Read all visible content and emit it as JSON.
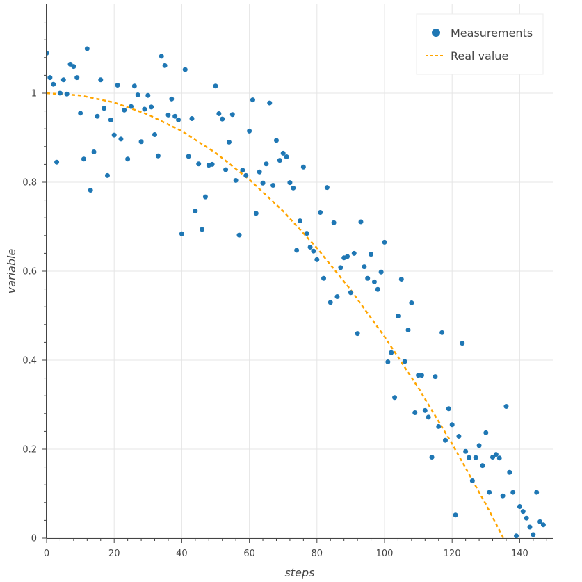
{
  "chart_data": {
    "type": "scatter",
    "title": "",
    "xlabel": "steps",
    "ylabel": "variable",
    "xlim": [
      0,
      150
    ],
    "ylim": [
      0,
      1.2
    ],
    "x_ticks": [
      0,
      20,
      40,
      60,
      80,
      100,
      120,
      140
    ],
    "y_ticks": [
      0,
      0.2,
      0.4,
      0.6,
      0.8,
      1
    ],
    "x_tick_labels": [
      "0",
      "20",
      "40",
      "60",
      "80",
      "100",
      "120",
      "140"
    ],
    "y_tick_labels": [
      "0",
      "0.2",
      "0.4",
      "0.6",
      "0.8",
      "1"
    ],
    "grid": true,
    "legend_position": "top-right",
    "colors": {
      "measurements": "#1f77b4",
      "real_value": "#ffa500",
      "grid": "#e5e5e5",
      "axis": "#444444"
    },
    "series": [
      {
        "name": "Measurements",
        "kind": "scatter",
        "x": [
          0,
          1,
          2,
          3,
          4,
          5,
          6,
          7,
          8,
          9,
          10,
          11,
          12,
          13,
          14,
          15,
          16,
          17,
          18,
          19,
          20,
          21,
          22,
          23,
          24,
          25,
          26,
          27,
          28,
          29,
          30,
          31,
          32,
          33,
          34,
          35,
          36,
          37,
          38,
          39,
          40,
          41,
          42,
          43,
          44,
          45,
          46,
          47,
          48,
          49,
          50,
          51,
          52,
          53,
          54,
          55,
          56,
          57,
          58,
          59,
          60,
          61,
          62,
          63,
          64,
          65,
          66,
          67,
          68,
          69,
          70,
          71,
          72,
          73,
          74,
          75,
          76,
          77,
          78,
          79,
          80,
          81,
          82,
          83,
          84,
          85,
          86,
          87,
          88,
          89,
          90,
          91,
          92,
          93,
          94,
          95,
          96,
          97,
          98,
          99,
          100,
          101,
          102,
          103,
          104,
          105,
          106,
          107,
          108,
          109,
          110,
          111,
          112,
          113,
          114,
          115,
          116,
          117,
          118,
          119,
          120,
          121,
          122,
          123,
          124,
          125,
          126,
          127,
          128,
          129,
          130,
          131,
          132,
          133,
          134,
          135,
          136,
          137,
          138,
          139,
          140,
          141,
          142,
          143,
          144,
          145,
          146,
          147
        ],
        "y": [
          1.09,
          1.035,
          1.02,
          0.845,
          1.0,
          1.03,
          0.998,
          1.065,
          1.06,
          1.035,
          0.955,
          0.852,
          1.1,
          0.782,
          0.868,
          0.948,
          1.03,
          0.966,
          0.815,
          0.94,
          0.906,
          1.018,
          0.897,
          0.962,
          0.852,
          0.97,
          1.016,
          0.996,
          0.891,
          0.964,
          0.995,
          0.969,
          0.907,
          0.859,
          1.083,
          1.062,
          0.951,
          0.987,
          0.948,
          0.94,
          0.684,
          1.053,
          0.858,
          0.943,
          0.735,
          0.841,
          0.694,
          0.767,
          0.838,
          0.84,
          1.016,
          0.954,
          0.942,
          0.828,
          0.89,
          0.952,
          0.804,
          0.681,
          0.827,
          0.815,
          0.915,
          0.985,
          0.73,
          0.823,
          0.798,
          0.841,
          0.978,
          0.793,
          0.894,
          0.849,
          0.865,
          0.857,
          0.799,
          0.787,
          0.647,
          0.713,
          0.834,
          0.685,
          0.654,
          0.645,
          0.626,
          0.732,
          0.584,
          0.788,
          0.53,
          0.709,
          0.543,
          0.608,
          0.63,
          0.633,
          0.552,
          0.64,
          0.46,
          0.711,
          0.61,
          0.584,
          0.638,
          0.576,
          0.559,
          0.598,
          0.665,
          0.396,
          0.417,
          0.316,
          0.499,
          0.582,
          0.397,
          0.468,
          0.529,
          0.282,
          0.366,
          0.366,
          0.287,
          0.272,
          0.182,
          0.363,
          0.251,
          0.462,
          0.22,
          0.291,
          0.255,
          0.052,
          0.229,
          0.438,
          0.195,
          0.181,
          0.129,
          0.181,
          0.208,
          0.163,
          0.237,
          0.103,
          0.182,
          0.188,
          0.18,
          0.095,
          0.296,
          0.148,
          0.103,
          0.005,
          0.071,
          0.06,
          0.045,
          0.025,
          0.008,
          0.103,
          0.037,
          0.03
        ]
      },
      {
        "name": "Real value",
        "kind": "line",
        "style": "dashed",
        "x": [
          0,
          10,
          20,
          30,
          40,
          50,
          60,
          70,
          80,
          90,
          100,
          110,
          120,
          130,
          140,
          143
        ],
        "y": [
          1.0,
          0.995,
          0.979,
          0.952,
          0.915,
          0.866,
          0.806,
          0.735,
          0.652,
          0.558,
          0.453,
          0.338,
          0.212,
          0.076,
          -0.07,
          -0.116
        ]
      }
    ]
  }
}
